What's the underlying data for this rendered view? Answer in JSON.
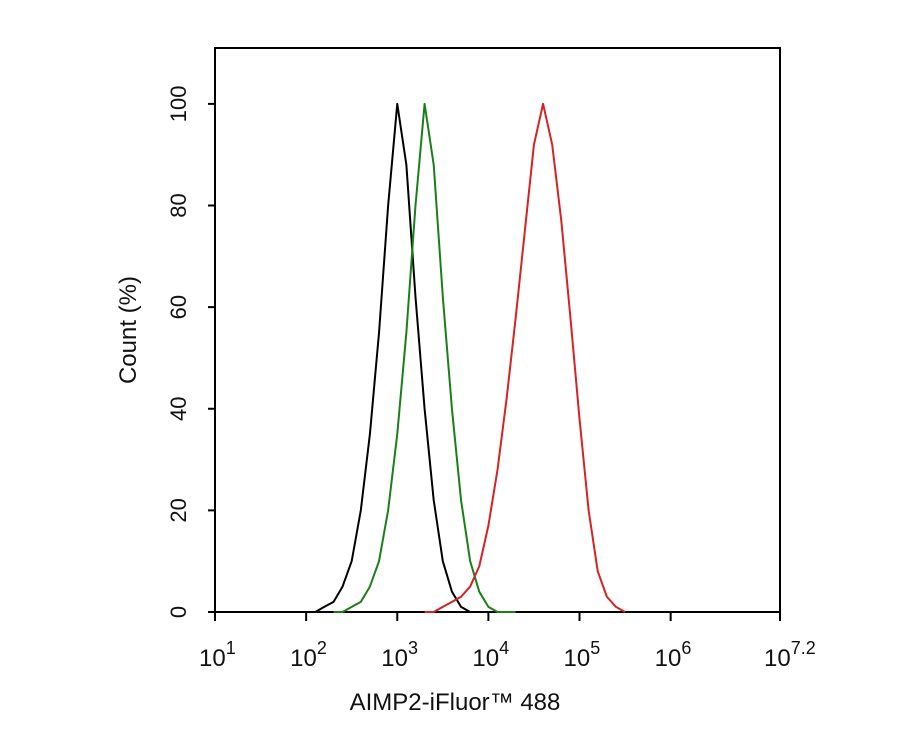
{
  "chart_data": {
    "type": "line",
    "xlabel": "AIMP2-iFluor™ 488",
    "ylabel": "Count  (%)",
    "xscale": "log",
    "xlim": [
      10,
      15848932
    ],
    "ylim": [
      0,
      111
    ],
    "xticks": [
      {
        "value": 10,
        "label": "10",
        "sup": "1"
      },
      {
        "value": 100,
        "label": "10",
        "sup": "2"
      },
      {
        "value": 1000,
        "label": "10",
        "sup": "3"
      },
      {
        "value": 10000,
        "label": "10",
        "sup": "4"
      },
      {
        "value": 100000,
        "label": "10",
        "sup": "5"
      },
      {
        "value": 1000000,
        "label": "10",
        "sup": "6"
      },
      {
        "value": 15848932,
        "label": "10",
        "sup": "7.2"
      }
    ],
    "yticks": [
      0,
      20,
      40,
      60,
      80,
      100
    ],
    "series": [
      {
        "color": "#000000",
        "x": [
          100,
          126,
          158,
          200,
          251,
          316,
          398,
          501,
          631,
          794,
          1000,
          1259,
          1585,
          1995,
          2512,
          3162,
          3981,
          5012,
          6310,
          7943,
          10000
        ],
        "values": [
          0,
          0,
          1,
          2,
          5,
          10,
          20,
          35,
          55,
          80,
          100,
          88,
          62,
          40,
          22,
          10,
          4,
          1,
          0,
          0,
          0
        ]
      },
      {
        "color": "#1a7f1a",
        "x": [
          200,
          251,
          316,
          398,
          501,
          631,
          794,
          1000,
          1259,
          1585,
          1995,
          2512,
          3162,
          3981,
          5012,
          6310,
          7943,
          10000,
          12589,
          15849,
          19953
        ],
        "values": [
          0,
          0,
          1,
          2,
          5,
          10,
          20,
          35,
          55,
          80,
          100,
          88,
          62,
          40,
          22,
          10,
          4,
          1,
          0,
          0,
          0
        ]
      },
      {
        "color": "#d62222",
        "x": [
          1995,
          2512,
          3162,
          3981,
          5012,
          6310,
          7943,
          10000,
          12589,
          15849,
          19953,
          25119,
          31623,
          39811,
          50119,
          63096,
          79433,
          100000,
          125893,
          158489,
          199526,
          251189,
          316228
        ],
        "values": [
          0,
          0,
          1,
          2,
          3,
          5,
          9,
          17,
          28,
          42,
          58,
          75,
          92,
          100,
          92,
          77,
          58,
          38,
          20,
          8,
          3,
          1,
          0
        ]
      }
    ]
  }
}
